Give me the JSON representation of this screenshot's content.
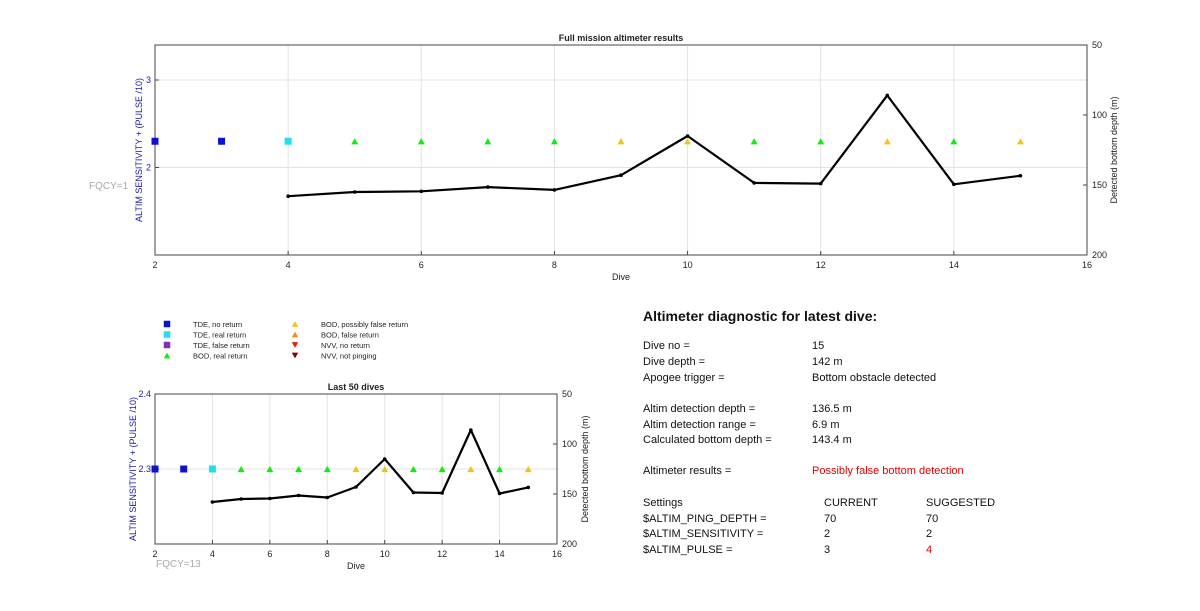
{
  "colors": {
    "tde_no_return": "#1010d0",
    "tde_real_return": "#20e0f0",
    "tde_false_return": "#8030c0",
    "bod_real_return": "#10ee10",
    "bod_possibly_false_return": "#f2c41a",
    "bod_false_return": "#f28c1a",
    "nvv_no_return": "#e02010",
    "nvv_not_pinging": "#8a0000",
    "depth_line": "#000000",
    "left_axis": "#1a1aa8",
    "warning": "#e00000"
  },
  "legend": [
    {
      "label": "TDE, no return",
      "marker": "square",
      "color_key": "tde_no_return"
    },
    {
      "label": "TDE, real return",
      "marker": "square",
      "color_key": "tde_real_return"
    },
    {
      "label": "TDE, false return",
      "marker": "square",
      "color_key": "tde_false_return"
    },
    {
      "label": "BOD, real return",
      "marker": "triangle-up",
      "color_key": "bod_real_return"
    },
    {
      "label": "BOD, possibly false return",
      "marker": "triangle-up",
      "color_key": "bod_possibly_false_return"
    },
    {
      "label": "BOD, false return",
      "marker": "triangle-up",
      "color_key": "bod_false_return"
    },
    {
      "label": "NVV, no return",
      "marker": "triangle-down",
      "color_key": "nvv_no_return"
    },
    {
      "label": "NVV, not pinging",
      "marker": "triangle-down",
      "color_key": "nvv_not_pinging"
    }
  ],
  "chart_data": [
    {
      "type": "scatter",
      "title": "Full mission altimeter results",
      "xlabel": "Dive",
      "ylabel_left": "ALTIM SENSITIVITY + (PULSE /10)",
      "ylabel_right": "Detected bottom depth (m)",
      "annotation": "FQCY=1",
      "xlim": [
        2,
        16
      ],
      "xticks": [
        2,
        4,
        6,
        8,
        10,
        12,
        14,
        16
      ],
      "ylim_left": [
        1,
        3.4
      ],
      "yticks_left": [
        2,
        3
      ],
      "ylim_right": [
        200,
        50
      ],
      "yticks_right": [
        50,
        100,
        150,
        200
      ],
      "grid": true,
      "markers": [
        {
          "dive": 2,
          "value": 2.3,
          "class": "tde_no_return"
        },
        {
          "dive": 3,
          "value": 2.3,
          "class": "tde_no_return"
        },
        {
          "dive": 4,
          "value": 2.3,
          "class": "tde_real_return"
        },
        {
          "dive": 5,
          "value": 2.3,
          "class": "bod_real_return"
        },
        {
          "dive": 6,
          "value": 2.3,
          "class": "bod_real_return"
        },
        {
          "dive": 7,
          "value": 2.3,
          "class": "bod_real_return"
        },
        {
          "dive": 8,
          "value": 2.3,
          "class": "bod_real_return"
        },
        {
          "dive": 9,
          "value": 2.3,
          "class": "bod_possibly_false_return"
        },
        {
          "dive": 10,
          "value": 2.3,
          "class": "bod_possibly_false_return"
        },
        {
          "dive": 11,
          "value": 2.3,
          "class": "bod_real_return"
        },
        {
          "dive": 12,
          "value": 2.3,
          "class": "bod_real_return"
        },
        {
          "dive": 13,
          "value": 2.3,
          "class": "bod_possibly_false_return"
        },
        {
          "dive": 14,
          "value": 2.3,
          "class": "bod_real_return"
        },
        {
          "dive": 15,
          "value": 2.3,
          "class": "bod_possibly_false_return"
        }
      ],
      "depth_series": {
        "x": [
          4,
          5,
          6,
          7,
          8,
          9,
          10,
          11,
          12,
          13,
          14,
          15
        ],
        "y": [
          158,
          155,
          154.5,
          151.5,
          153.5,
          143,
          115,
          148.5,
          149,
          86,
          149.5,
          143.4
        ]
      }
    },
    {
      "type": "scatter",
      "title": "Last 50 dives",
      "xlabel": "Dive",
      "ylabel_left": "ALTIM SENSITIVITY + (PULSE /10)",
      "ylabel_right": "Detected bottom depth (m)",
      "annotation": "FQCY=13",
      "xlim": [
        2,
        16
      ],
      "xticks": [
        2,
        4,
        6,
        8,
        10,
        12,
        14,
        16
      ],
      "ylim_left": [
        2.2,
        2.4
      ],
      "yticks_left": [
        2.3,
        2.4
      ],
      "ylim_right": [
        200,
        50
      ],
      "yticks_right": [
        50,
        100,
        150,
        200
      ],
      "grid": true,
      "markers": [
        {
          "dive": 2,
          "value": 2.3,
          "class": "tde_no_return"
        },
        {
          "dive": 3,
          "value": 2.3,
          "class": "tde_no_return"
        },
        {
          "dive": 4,
          "value": 2.3,
          "class": "tde_real_return"
        },
        {
          "dive": 5,
          "value": 2.3,
          "class": "bod_real_return"
        },
        {
          "dive": 6,
          "value": 2.3,
          "class": "bod_real_return"
        },
        {
          "dive": 7,
          "value": 2.3,
          "class": "bod_real_return"
        },
        {
          "dive": 8,
          "value": 2.3,
          "class": "bod_real_return"
        },
        {
          "dive": 9,
          "value": 2.3,
          "class": "bod_possibly_false_return"
        },
        {
          "dive": 10,
          "value": 2.3,
          "class": "bod_possibly_false_return"
        },
        {
          "dive": 11,
          "value": 2.3,
          "class": "bod_real_return"
        },
        {
          "dive": 12,
          "value": 2.3,
          "class": "bod_real_return"
        },
        {
          "dive": 13,
          "value": 2.3,
          "class": "bod_possibly_false_return"
        },
        {
          "dive": 14,
          "value": 2.3,
          "class": "bod_real_return"
        },
        {
          "dive": 15,
          "value": 2.3,
          "class": "bod_possibly_false_return"
        }
      ],
      "depth_series": {
        "x": [
          4,
          5,
          6,
          7,
          8,
          9,
          10,
          11,
          12,
          13,
          14,
          15
        ],
        "y": [
          158,
          155,
          154.5,
          151.5,
          153.5,
          143,
          115,
          148.5,
          149,
          86,
          149.5,
          143.4
        ]
      }
    }
  ],
  "diagnostic": {
    "title": "Altimeter diagnostic for latest dive:",
    "dive_no_label": "Dive no =",
    "dive_no": "15",
    "dive_depth_label": "Dive depth =",
    "dive_depth": "142 m",
    "apogee_label": "Apogee trigger =",
    "apogee": "Bottom obstacle detected",
    "detection_depth_label": "Altim detection depth =",
    "detection_depth": "136.5 m",
    "detection_range_label": "Altim detection range =",
    "detection_range": "6.9 m",
    "bottom_depth_label": "Calculated bottom depth =",
    "bottom_depth": "143.4 m",
    "results_label": "Altimeter results =",
    "results": "Possibly false bottom detection",
    "settings_header": "Settings",
    "current_header": "CURRENT",
    "suggested_header": "SUGGESTED",
    "settings": [
      {
        "name": "$ALTIM_PING_DEPTH =",
        "current": "70",
        "suggested": "70",
        "changed": false
      },
      {
        "name": "$ALTIM_SENSITIVITY =",
        "current": "2",
        "suggested": "2",
        "changed": false
      },
      {
        "name": "$ALTIM_PULSE =",
        "current": "3",
        "suggested": "4",
        "changed": true
      }
    ]
  }
}
